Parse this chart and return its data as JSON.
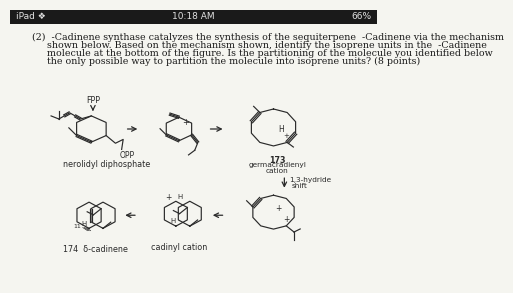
{
  "status_bar_bg": "#1a1a1a",
  "status_bar_text_color": "#e0e0e0",
  "status_bar_left": "iPad ♀",
  "status_bar_center": "10:18 AM",
  "status_bar_right": "66%",
  "body_bg": "#f5f5f0",
  "text_color": "#1a1a1a",
  "line_color": "#2a2a2a",
  "q_lines": [
    "(2)  -Cadinene synthase catalyzes the synthesis of the sequiterpene  -Cadinene via the mechanism",
    "     shown below. Based on the mechanism shown, identify the isoprene units in the  -Cadinene",
    "     molecule at the bottom of the figure. Is the partitioning of the molecule you identified below",
    "     the only possible way to partition the molecule into isoprene units? (8 points)"
  ],
  "font_size_q": 6.8,
  "font_size_label": 5.8,
  "font_size_small": 5.0
}
